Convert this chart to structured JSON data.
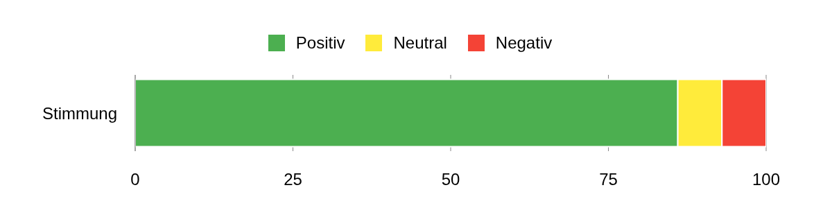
{
  "chart_data": {
    "type": "bar",
    "orientation": "horizontal",
    "stacked": true,
    "categories": [
      "Stimmung"
    ],
    "series": [
      {
        "name": "Positiv",
        "color": "#4caf50",
        "values": [
          86
        ]
      },
      {
        "name": "Neutral",
        "color": "#ffeb3b",
        "values": [
          7
        ]
      },
      {
        "name": "Negativ",
        "color": "#f44336",
        "values": [
          7
        ]
      }
    ],
    "xlim": [
      0,
      100
    ],
    "xticks": [
      0,
      25,
      50,
      75,
      100
    ],
    "grid": "x",
    "legend": "top"
  }
}
